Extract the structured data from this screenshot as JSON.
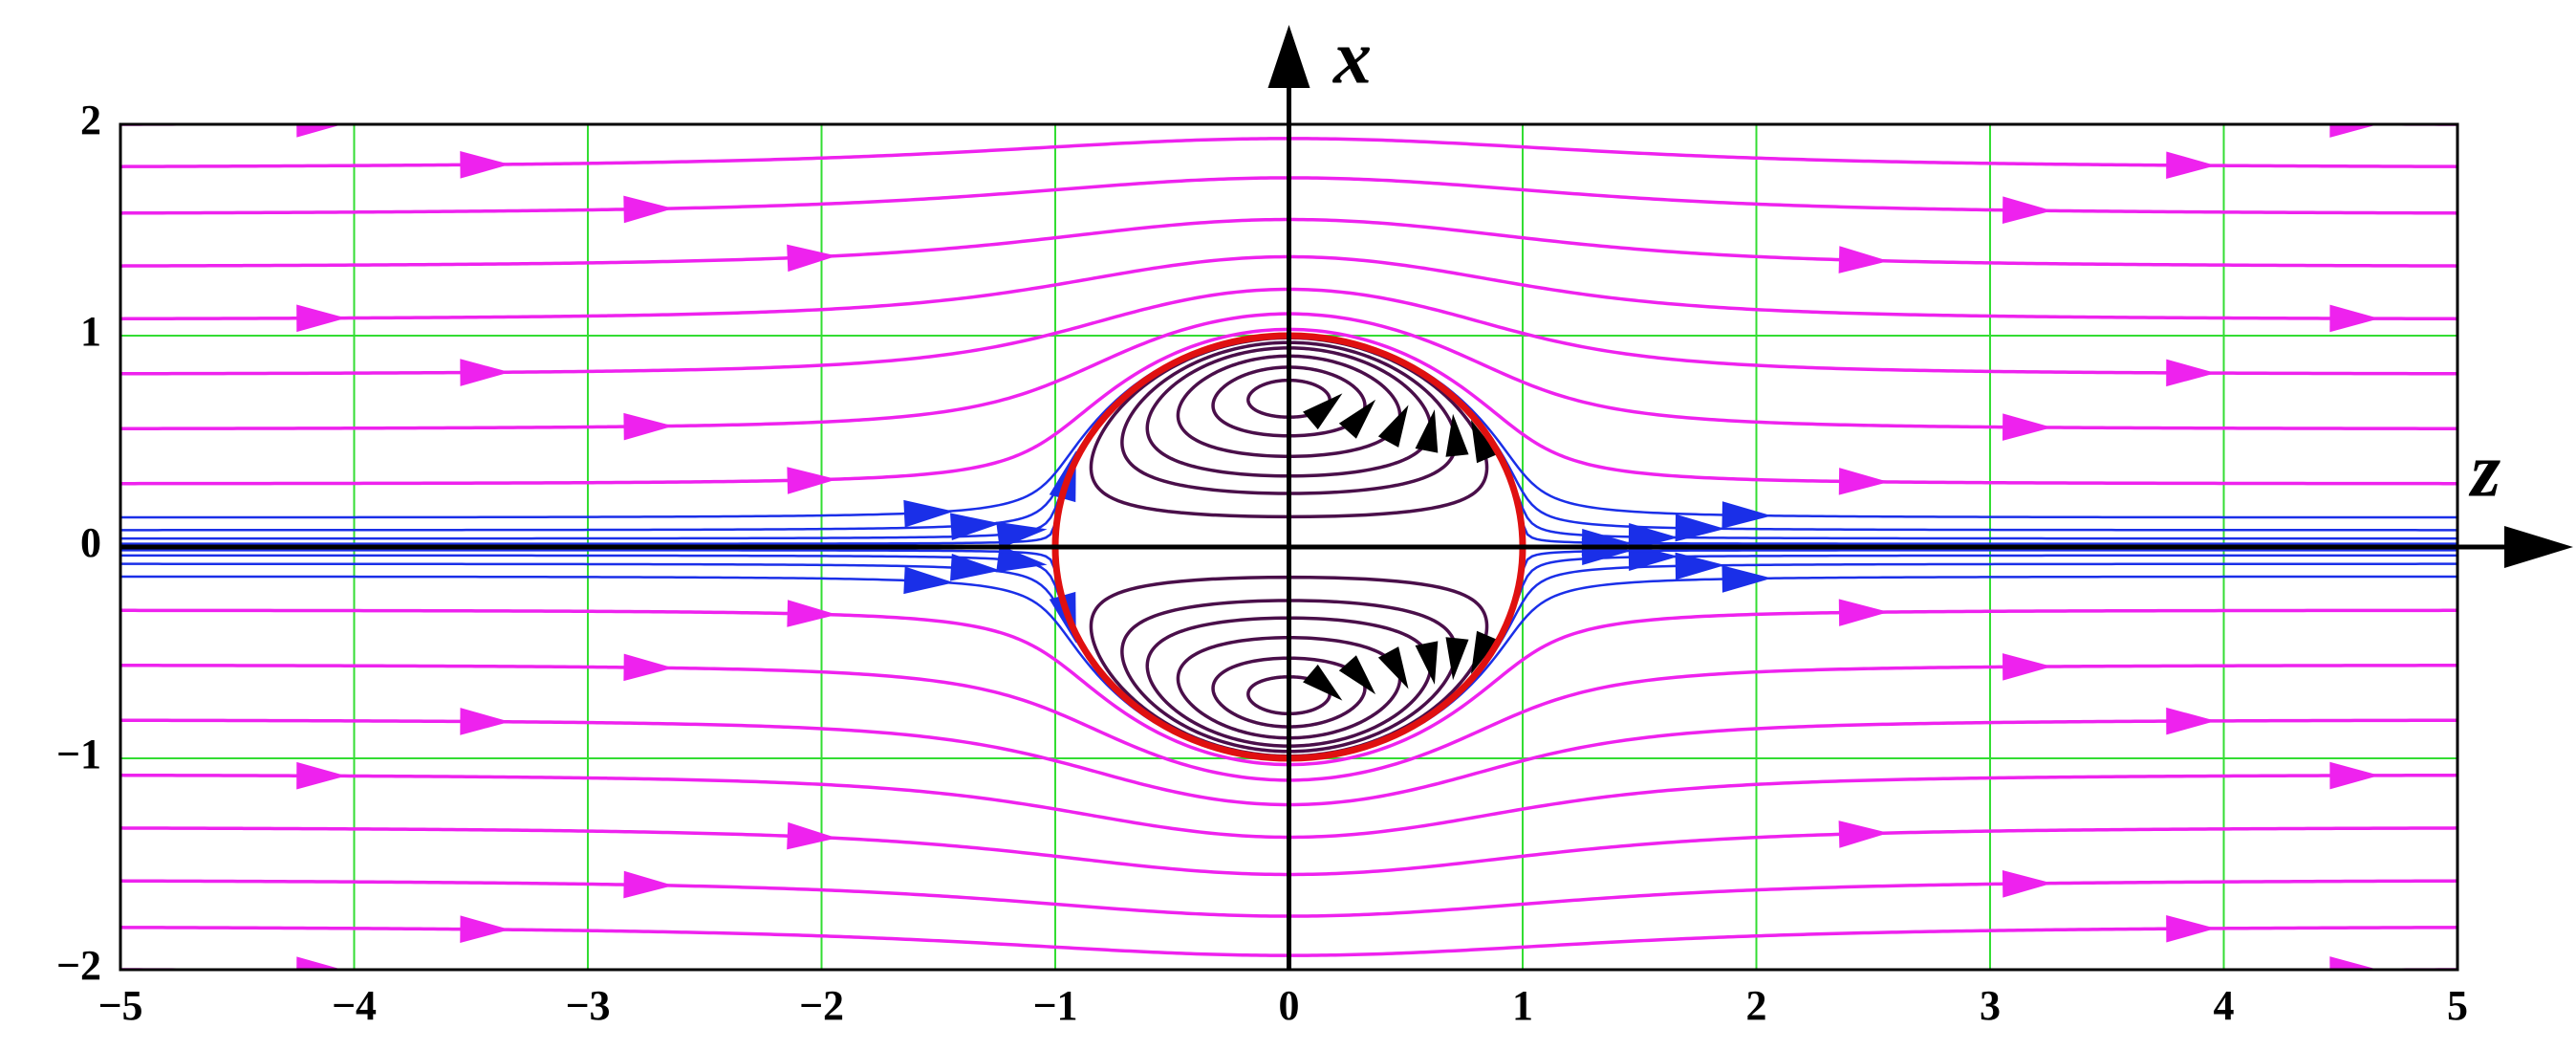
{
  "chart_data": {
    "type": "streamline",
    "xlabel": "z",
    "ylabel": "x",
    "xlim": [
      -5,
      5
    ],
    "ylim": [
      -2,
      2
    ],
    "xticks": [
      {
        "value": -5,
        "label": "−5"
      },
      {
        "value": -4,
        "label": "−4"
      },
      {
        "value": -3,
        "label": "−3"
      },
      {
        "value": -2,
        "label": "−2"
      },
      {
        "value": -1,
        "label": "−1"
      },
      0,
      1,
      2,
      3,
      4,
      5
    ],
    "yticks": [
      {
        "value": -2,
        "label": "−2"
      },
      {
        "value": -1,
        "label": "−1"
      },
      0,
      1,
      2
    ],
    "grid": true,
    "grid_color": "#33dd33"
  }
}
